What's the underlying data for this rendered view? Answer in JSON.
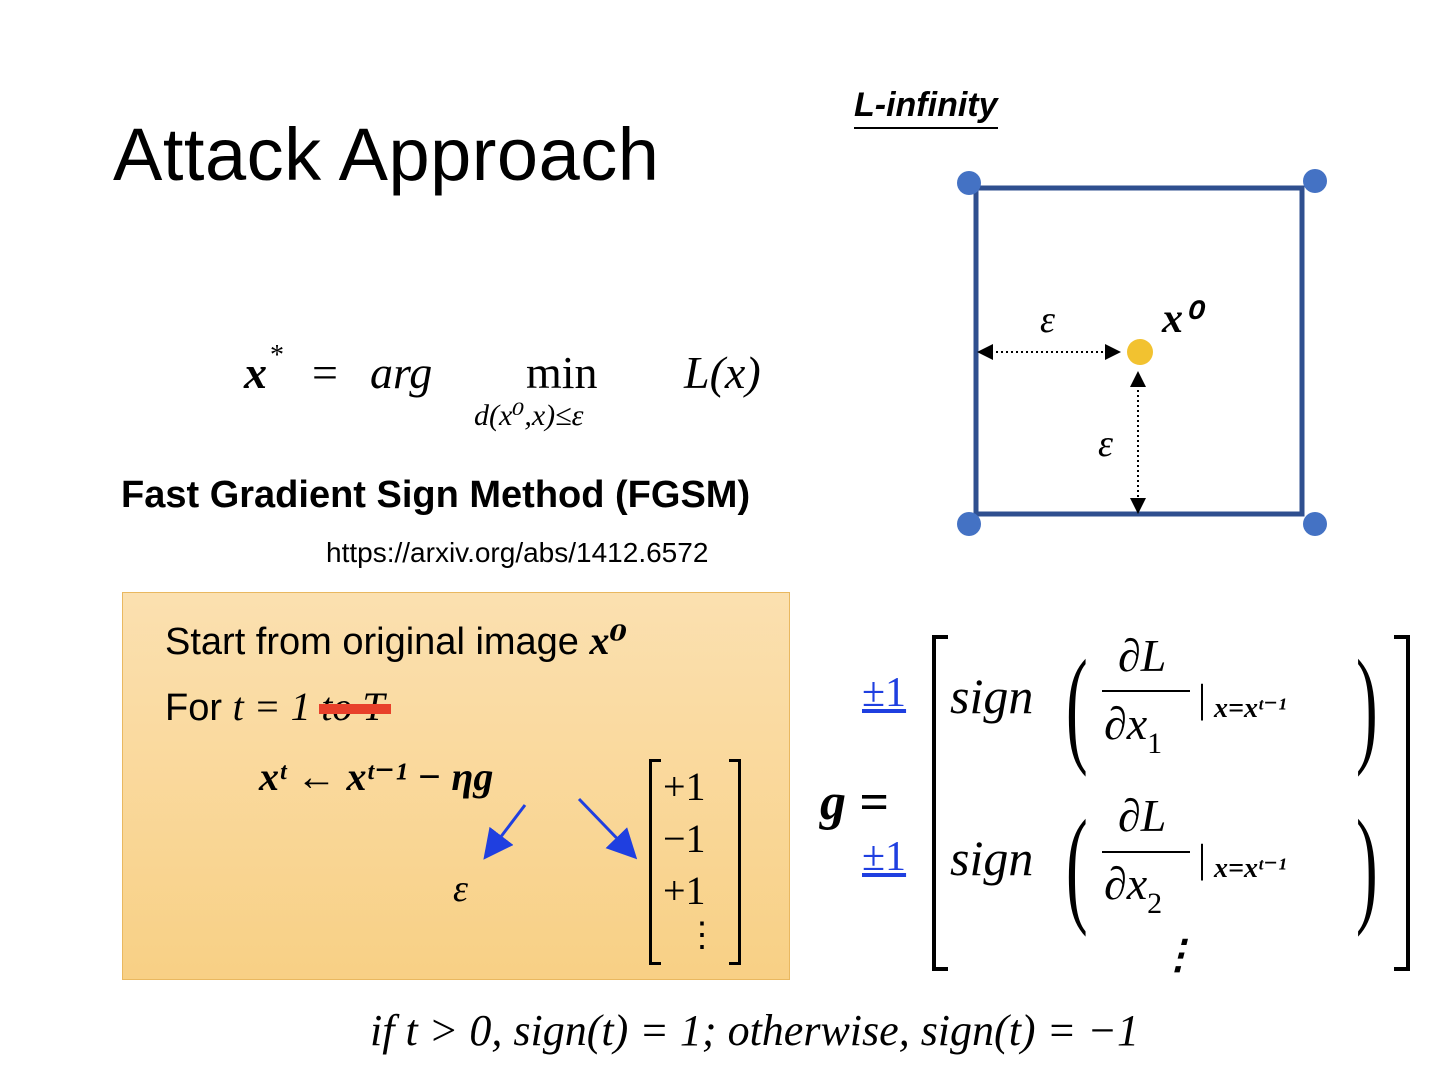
{
  "slide": {
    "title": "Attack Approach",
    "objective": {
      "lhs_var": "x",
      "lhs_sup": "*",
      "equals": "=",
      "argword": "arg",
      "minword": "min",
      "constraint": "d(x⁰,x)≤ε",
      "loss": "L(x)"
    },
    "method": {
      "title": "Fast Gradient Sign Method (FGSM)",
      "url": "https://arxiv.org/abs/1412.6572"
    },
    "algorithm": {
      "line1_text": "Start from original image",
      "line1_var": "x⁰",
      "line2_text": "For",
      "line2_math": "t = 1",
      "line2_struck": "to T",
      "update_rule": "xᵗ ← xᵗ⁻¹ − ηg",
      "eta_arrow_label": "ε",
      "g_vector": [
        "+1",
        "−1",
        "+1",
        "⋮"
      ]
    },
    "linf": {
      "label": "L-infinity",
      "point_label": "x⁰",
      "eps_horizontal": "ε",
      "eps_vertical": "ε"
    },
    "gradient": {
      "lhs": "g =",
      "rows": [
        {
          "coef": "±1",
          "fn": "sign",
          "num": "∂L",
          "den_var": "∂x",
          "den_sub": "1",
          "eval": "x=xᵗ⁻¹"
        },
        {
          "coef": "±1",
          "fn": "sign",
          "num": "∂L",
          "den_var": "∂x",
          "den_sub": "2",
          "eval": "x=xᵗ⁻¹"
        }
      ],
      "ellipsis": "⋮"
    },
    "sign_definition": "if t > 0, sign(t) = 1; otherwise, sign(t) = −1",
    "colors": {
      "box_fill": "#f9d48e",
      "linf_square": "#2f4f8f",
      "corner_dot": "#4472c4",
      "origin_dot": "#f2c230",
      "strike": "#e8402a",
      "arrow_blue": "#1f3fe0",
      "coef_blue": "#1f3fe0"
    }
  }
}
